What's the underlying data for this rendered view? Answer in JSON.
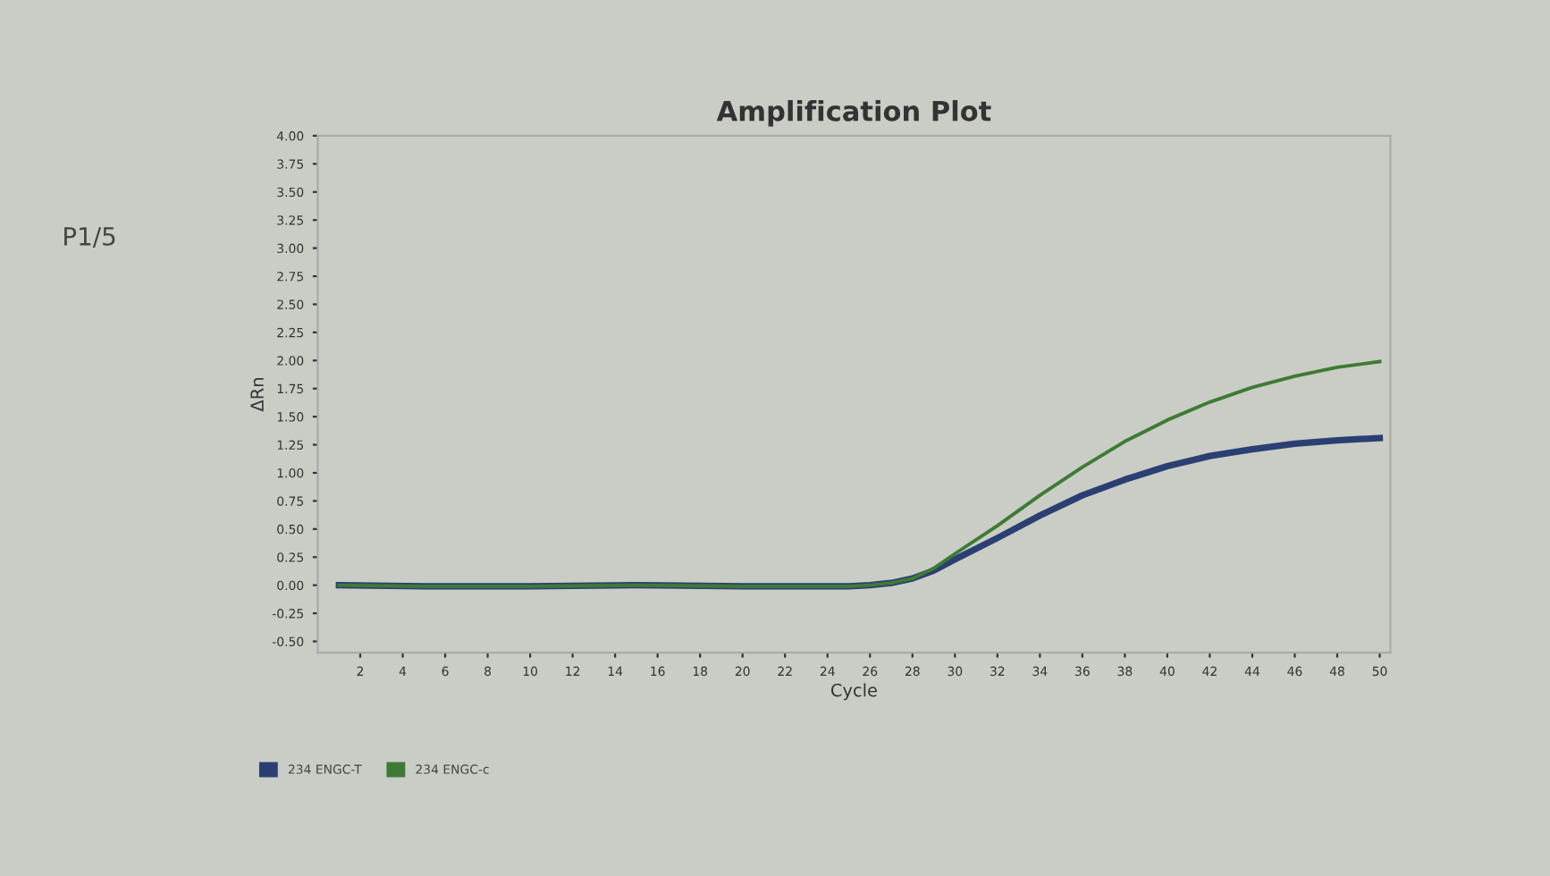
{
  "chart_data": {
    "type": "line",
    "title": "Amplification Plot",
    "xlabel": "Cycle",
    "ylabel": "ΔRn",
    "annotations": [
      "P1/5"
    ],
    "x": [
      1,
      5,
      10,
      15,
      20,
      25,
      26,
      27,
      28,
      29,
      30,
      32,
      34,
      36,
      38,
      40,
      42,
      44,
      46,
      48,
      50
    ],
    "series": [
      {
        "name": "234 ENGC-T",
        "color": "#2b3f73",
        "values": [
          0.0,
          -0.01,
          -0.01,
          0.0,
          -0.01,
          -0.01,
          0.0,
          0.02,
          0.06,
          0.13,
          0.23,
          0.42,
          0.62,
          0.8,
          0.94,
          1.06,
          1.15,
          1.21,
          1.26,
          1.29,
          1.31
        ]
      },
      {
        "name": "234 ENGC-c",
        "color": "#3f7a35",
        "values": [
          0.0,
          -0.01,
          -0.01,
          0.0,
          -0.01,
          -0.01,
          0.0,
          0.02,
          0.06,
          0.15,
          0.28,
          0.53,
          0.8,
          1.05,
          1.28,
          1.47,
          1.63,
          1.76,
          1.86,
          1.94,
          1.99
        ]
      }
    ],
    "xlim": [
      0,
      50.5
    ],
    "xticks": [
      2,
      4,
      6,
      8,
      10,
      12,
      14,
      16,
      18,
      20,
      22,
      24,
      26,
      28,
      30,
      32,
      34,
      36,
      38,
      40,
      42,
      44,
      46,
      48,
      50
    ],
    "ylim": [
      -0.6,
      4.0
    ],
    "yticks": [
      {
        "value": -0.5,
        "label": "-0.50"
      },
      {
        "value": -0.25,
        "label": "-0.25"
      },
      {
        "value": 0,
        "label": "0.00"
      },
      {
        "value": 0.25,
        "label": "0.25"
      },
      {
        "value": 0.5,
        "label": "0.50"
      },
      {
        "value": 0.75,
        "label": "0.75"
      },
      {
        "value": 1,
        "label": "1.00"
      },
      {
        "value": 1.25,
        "label": "1.25"
      },
      {
        "value": 1.5,
        "label": "1.50"
      },
      {
        "value": 1.75,
        "label": "1.75"
      },
      {
        "value": 2,
        "label": "2.00"
      },
      {
        "value": 2.25,
        "label": "2.25"
      },
      {
        "value": 2.5,
        "label": "2.50"
      },
      {
        "value": 2.75,
        "label": "2.75"
      },
      {
        "value": 3,
        "label": "3.00"
      },
      {
        "value": 3.25,
        "label": "3.25"
      },
      {
        "value": 3.5,
        "label": "3.50"
      },
      {
        "value": 3.75,
        "label": "3.75"
      },
      {
        "value": 4,
        "label": "4.00"
      }
    ],
    "grid": false,
    "legend": "bottom left",
    "marker": "none",
    "line_style": "solid"
  }
}
